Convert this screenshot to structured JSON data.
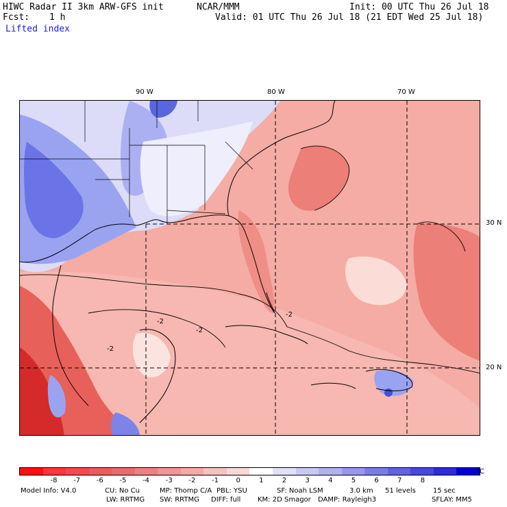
{
  "header": {
    "title_left": "HIWC Radar II 3km ARW-GFS init",
    "org": "NCAR/MMM",
    "fcst_label": "Fcst:",
    "fcst_value": "1 h",
    "init": "Init: 00 UTC Thu 26 Jul 18",
    "valid": "Valid: 01 UTC Thu 26 Jul 18 (21 EDT Wed 25 Jul 18)",
    "field": "Lifted index"
  },
  "map": {
    "lon_labels": [
      "90 W",
      "80 W",
      "70 W"
    ],
    "lat_labels": [
      "30 N",
      "20 N"
    ],
    "contour_labels": [
      "-2",
      "-2",
      "-2",
      "-2"
    ],
    "colors": {
      "land_blue": "#9aa3f0",
      "deep_blue": "#5a66e0",
      "light_blue": "#d8daf8",
      "pale": "#fbe4e0",
      "light_red": "#f6b3ab",
      "mid_red": "#ef8e86",
      "strong_red": "#e4655f",
      "deep_red": "#d42a2a",
      "line": "#000000"
    }
  },
  "colorbar": {
    "ticks": [
      "-8",
      "-7",
      "-6",
      "-5",
      "-4",
      "-3",
      "-2",
      "-1",
      "0",
      "1",
      "2",
      "3",
      "4",
      "5",
      "6",
      "7",
      "8"
    ],
    "unit": "°C",
    "colors": [
      "#ff1010",
      "#ff3636",
      "#f84848",
      "#f05a5a",
      "#ec6c6c",
      "#ee8080",
      "#f29494",
      "#f5a8a6",
      "#f8c0be",
      "#fbd8d6",
      "#ffffff",
      "#e0e0fa",
      "#c8c8f6",
      "#b0b0f2",
      "#9696ee",
      "#7c7ce8",
      "#6262e4",
      "#4848e0",
      "#2c2cdc",
      "#0000d8"
    ]
  },
  "footer": {
    "line1": [
      "Model Info: V4.0",
      "CU: No Cu",
      "MP: Thomp C/A",
      "PBL: YSU",
      "SF: Noah LSM",
      "3.0 km",
      "51 levels",
      "15 sec"
    ],
    "line2": [
      "LW: RRTMG",
      "SW: RRTMG",
      "DIFF: full",
      "KM: 2D Smagor",
      "DAMP: Rayleigh3",
      "SFLAY: MM5"
    ]
  }
}
